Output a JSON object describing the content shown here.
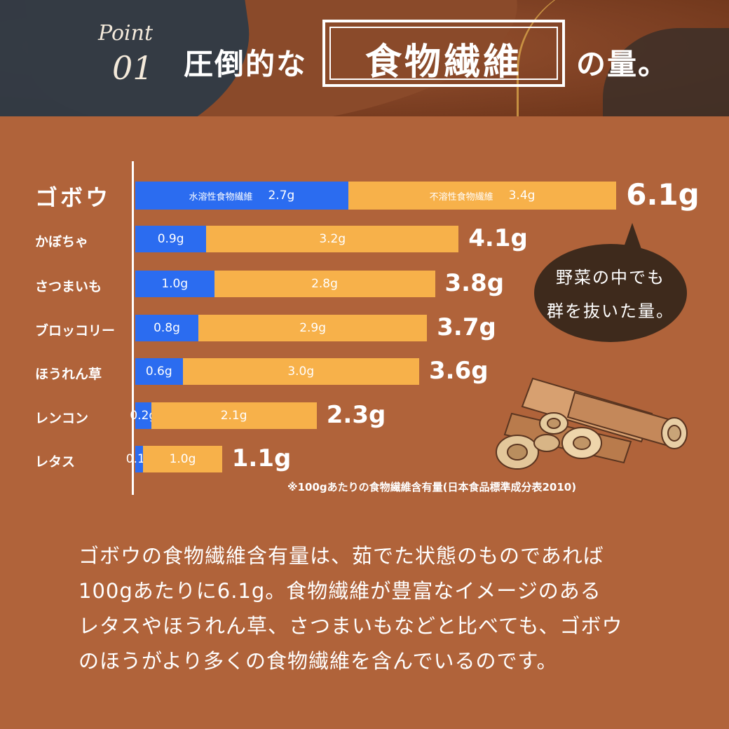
{
  "header": {
    "point_word": "Point",
    "point_number": "01",
    "title_left": "圧倒的な",
    "title_box": "食物繊維",
    "title_right": "の量。"
  },
  "chart_data": {
    "type": "bar",
    "stacked": true,
    "orientation": "horizontal",
    "categories": [
      "ゴボウ",
      "かぼちゃ",
      "さつまいも",
      "ブロッコリー",
      "ほうれん草",
      "レンコン",
      "レタス"
    ],
    "series": [
      {
        "name": "水溶性食物繊維",
        "values": [
          2.7,
          0.9,
          1.0,
          0.8,
          0.6,
          0.2,
          0.1
        ],
        "color": "#2b6cf0"
      },
      {
        "name": "不溶性食物繊維",
        "values": [
          3.4,
          3.2,
          2.8,
          2.9,
          3.0,
          2.1,
          1.0
        ],
        "color": "#f7b14a"
      }
    ],
    "totals": [
      6.1,
      4.1,
      3.8,
      3.7,
      3.6,
      2.3,
      1.1
    ],
    "unit": "g",
    "legend": "inline-labels",
    "grid": false,
    "note": "※100gあたりの食物繊維含有量(日本食品標準成分表2010)"
  },
  "bubble": {
    "line1": "野菜の中でも",
    "line2": "群を抜いた量。"
  },
  "paragraph": [
    "ゴボウの食物繊維含有量は、茹でた状態のものであれば",
    "100gあたりに6.1g。食物繊維が豊富なイメージのある",
    "レタスやほうれん草、さつまいもなどと比べても、ゴボウ",
    "のほうがより多くの食物繊維を含んでいるのです。"
  ],
  "colors": {
    "background": "#b0633a",
    "soluble": "#2b6cf0",
    "insoluble": "#f7b14a",
    "bubble": "#3e2a1c"
  }
}
